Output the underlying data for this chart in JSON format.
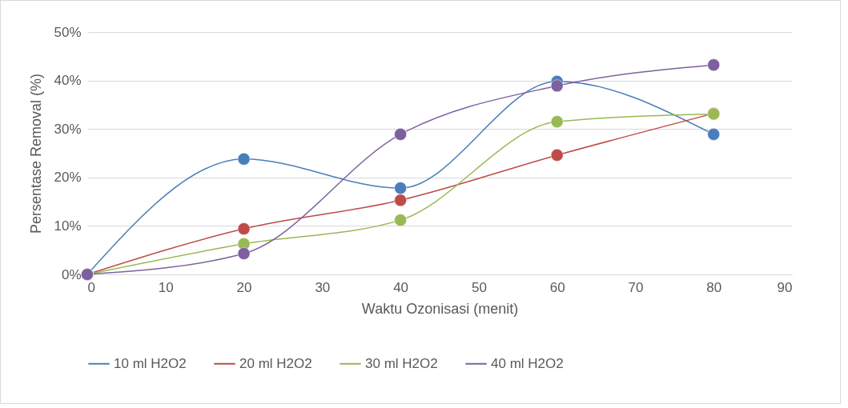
{
  "chart_data": {
    "type": "line",
    "xlabel": "Waktu Ozonisasi (menit)",
    "ylabel": "Persentase Removal (%)",
    "x": [
      0,
      20,
      40,
      60,
      80
    ],
    "series": [
      {
        "name": "10 ml H2O2",
        "color": "#4a7ebb",
        "values": [
          0,
          23.8,
          17.8,
          39.8,
          28.9
        ]
      },
      {
        "name": "20 ml H2O2",
        "color": "#be4b48",
        "values": [
          0,
          9.4,
          15.3,
          24.6,
          33.2
        ]
      },
      {
        "name": "30 ml H2O2",
        "color": "#98b954",
        "values": [
          0,
          6.3,
          11.2,
          31.5,
          33.1
        ]
      },
      {
        "name": "40 ml H2O2",
        "color": "#7d60a0",
        "values": [
          0,
          4.3,
          28.9,
          38.9,
          43.2
        ]
      }
    ],
    "xlim": [
      0,
      90
    ],
    "xticks": [
      0,
      10,
      20,
      30,
      40,
      50,
      60,
      70,
      80,
      90
    ],
    "ylim": [
      0,
      50
    ],
    "yticks": [
      {
        "value": 0,
        "label": "0%"
      },
      {
        "value": 10,
        "label": "10%"
      },
      {
        "value": 20,
        "label": "20%"
      },
      {
        "value": 30,
        "label": "30%"
      },
      {
        "value": 40,
        "label": "40%"
      },
      {
        "value": 50,
        "label": "50%"
      }
    ],
    "grid": "y",
    "legend": "bottom",
    "marker": "circle"
  }
}
